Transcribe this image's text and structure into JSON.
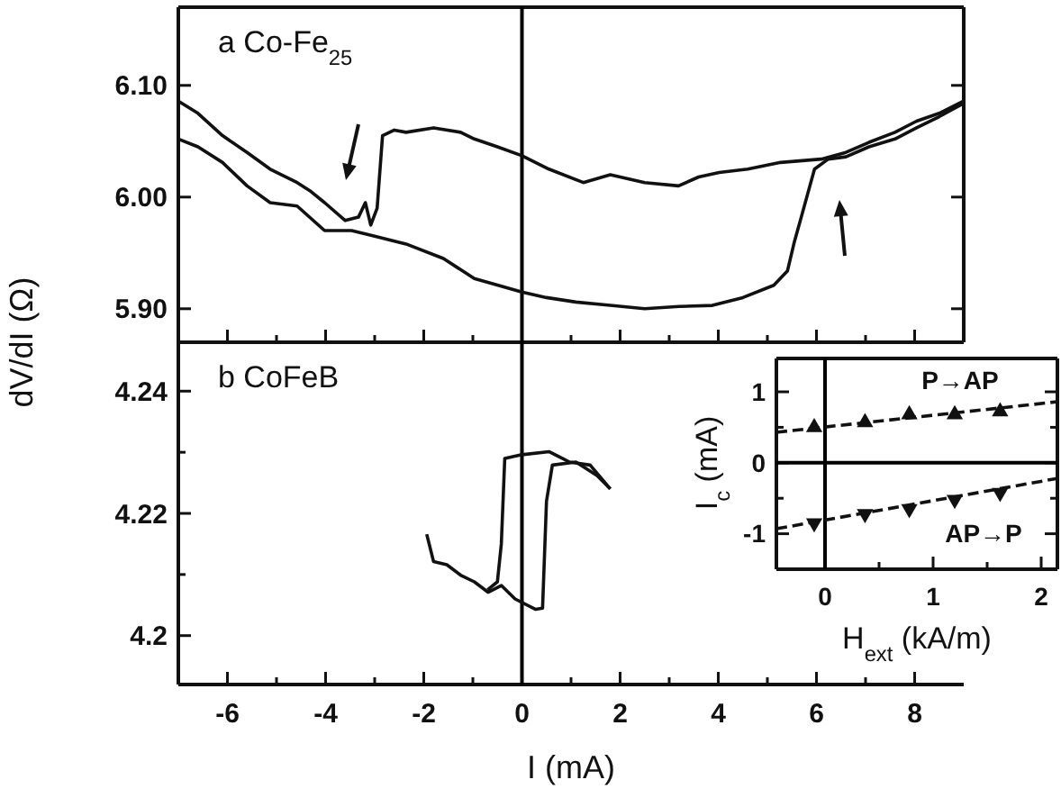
{
  "chart_data": [
    {
      "type": "line",
      "title": "a  Co-Fe$_{25}$",
      "xlim": [
        -7,
        9
      ],
      "ylim": [
        5.87,
        6.17
      ],
      "xticks": [
        -6,
        -4,
        -2,
        0,
        2,
        4,
        6,
        8,
        {
          "value": -7,
          "label": null
        },
        {
          "value": -5,
          "label": null
        },
        {
          "value": -3,
          "label": null
        },
        {
          "value": -1,
          "label": null
        },
        {
          "value": 1,
          "label": null
        },
        {
          "value": 3,
          "label": null
        },
        {
          "value": 5,
          "label": null
        },
        {
          "value": 7,
          "label": null
        }
      ],
      "yticks": [
        {
          "value": 6.1,
          "label": "6.10"
        },
        {
          "value": 6.0,
          "label": "6.00"
        },
        {
          "value": 5.9,
          "label": "5.90"
        }
      ],
      "tick_labels": "y",
      "grid": false,
      "ref_lines": [
        {
          "axis": "x",
          "value": 0,
          "color": "#000000"
        }
      ],
      "series": [
        {
          "color": "#111111",
          "x": [
            -7,
            -6.6,
            -6.1,
            -5.6,
            -5.13,
            -4.58,
            -4.3,
            -4.02,
            -3.6,
            -3.33,
            -3.19,
            -3.08,
            -2.95,
            -2.84,
            -2.6,
            -2.36,
            -1.8,
            -1.25,
            -0.97,
            -0.5,
            0,
            0.55,
            1.25,
            1.8,
            2.5,
            3.19,
            3.6,
            4.02,
            4.6,
            5.27,
            6.1,
            6.6,
            7.07,
            7.6,
            8.04,
            8.5,
            9
          ],
          "values": [
            6.086,
            6.075,
            6.055,
            6.04,
            6.025,
            6.013,
            6.005,
            5.995,
            5.979,
            5.982,
            5.995,
            5.975,
            5.99,
            6.055,
            6.06,
            6.058,
            6.062,
            6.058,
            6.052,
            6.045,
            6.037,
            6.025,
            6.013,
            6.02,
            6.013,
            6.01,
            6.018,
            6.022,
            6.025,
            6.031,
            6.034,
            6.04,
            6.049,
            6.058,
            6.068,
            6.075,
            6.086
          ]
        },
        {
          "color": "#111111",
          "x": [
            -7,
            -6.6,
            -6.1,
            -5.6,
            -5.13,
            -4.58,
            -4.02,
            -3.47,
            -3.0,
            -2.36,
            -1.6,
            -0.97,
            0,
            0.5,
            1.1,
            1.8,
            2.5,
            3.2,
            3.88,
            4.5,
            5.13,
            5.41,
            5.55,
            5.69,
            5.96,
            6.24,
            6.6,
            7.07,
            7.6,
            8.04,
            8.5,
            9
          ],
          "values": [
            6.052,
            6.045,
            6.031,
            6.01,
            5.995,
            5.992,
            5.97,
            5.97,
            5.965,
            5.958,
            5.945,
            5.927,
            5.915,
            5.91,
            5.906,
            5.903,
            5.9,
            5.902,
            5.903,
            5.91,
            5.921,
            5.934,
            5.96,
            5.982,
            6.025,
            6.034,
            6.036,
            6.045,
            6.052,
            6.062,
            6.072,
            6.084
          ]
        }
      ]
    },
    {
      "type": "line",
      "title": "b  CoFeB",
      "xlabel": "I (mA)",
      "ylabel": "dV/dI (Ω)",
      "xlim": [
        -7,
        9
      ],
      "ylim": [
        4.192,
        4.248
      ],
      "xticks": [
        -6,
        -4,
        -2,
        0,
        2,
        4,
        6,
        8,
        {
          "value": -7,
          "label": null
        },
        {
          "value": -5,
          "label": null
        },
        {
          "value": -3,
          "label": null
        },
        {
          "value": -1,
          "label": null
        },
        {
          "value": 1,
          "label": null
        },
        {
          "value": 3,
          "label": null
        },
        {
          "value": 5,
          "label": null
        },
        {
          "value": 7,
          "label": null
        }
      ],
      "yticks": [
        4.24,
        {
          "value": 4.23,
          "label": null
        },
        4.22,
        {
          "value": 4.21,
          "label": null
        },
        4.2
      ],
      "grid": false,
      "ref_lines": [
        {
          "axis": "x",
          "value": 0,
          "color": "#000000"
        }
      ],
      "series": [
        {
          "color": "#111111",
          "x": [
            -1.94,
            -1.8,
            -1.53,
            -1.25,
            -0.97,
            -0.69,
            -0.42,
            -0.14,
            0.28,
            0.42,
            0.5,
            0.62,
            1.1,
            1.53,
            1.8
          ],
          "values": [
            4.2166,
            4.2121,
            4.2116,
            4.2099,
            4.2088,
            4.2071,
            4.2082,
            4.206,
            4.2043,
            4.2045,
            4.222,
            4.2279,
            4.2284,
            4.2262,
            4.224
          ]
        },
        {
          "color": "#111111",
          "x": [
            1.8,
            1.39,
            0.97,
            0.55,
            0,
            -0.35,
            -0.42,
            -0.5,
            -0.7
          ],
          "values": [
            4.224,
            4.2279,
            4.2284,
            4.2301,
            4.2296,
            4.229,
            4.215,
            4.2088,
            4.2075
          ]
        }
      ]
    },
    {
      "type": "scatter",
      "xlabel": "H$_{ext}$ (kA/m)",
      "ylabel": "I$_{c}$ (mA)",
      "xlim": [
        -0.45,
        2.15
      ],
      "ylim": [
        -1.5,
        1.47
      ],
      "xticks": [
        0,
        1,
        2,
        {
          "value": 0.5,
          "label": null
        },
        {
          "value": 1.5,
          "label": null
        }
      ],
      "yticks": [
        -1,
        0,
        1,
        {
          "value": -0.5,
          "label": null
        },
        {
          "value": 0.5,
          "label": null
        }
      ],
      "grid": false,
      "ref_lines": [
        {
          "axis": "x",
          "value": 0,
          "color": "#000000"
        },
        {
          "axis": "y",
          "value": 0,
          "color": "#000000"
        }
      ],
      "annotations": [
        "P→AP",
        "AP→P"
      ],
      "series": [
        {
          "color": "#111111",
          "marker": "triangle",
          "x": [
            -0.1,
            0.37,
            0.78,
            1.2,
            1.62
          ],
          "values": [
            0.5,
            0.57,
            0.68,
            0.68,
            0.72
          ]
        },
        {
          "color": "#111111",
          "marker": "triangle-down",
          "x": [
            -0.1,
            0.37,
            0.78,
            1.2,
            1.62
          ],
          "values": [
            -0.85,
            -0.72,
            -0.65,
            -0.52,
            -0.42
          ]
        },
        {
          "type": "line",
          "color": "#111111",
          "line_style": "dashed",
          "marker": "none",
          "x": [
            -0.45,
            2.15
          ],
          "values": [
            0.43,
            0.86
          ]
        },
        {
          "type": "line",
          "color": "#111111",
          "line_style": "dashed",
          "marker": "none",
          "x": [
            -0.45,
            2.15
          ],
          "values": [
            -0.93,
            -0.22
          ]
        }
      ]
    }
  ]
}
